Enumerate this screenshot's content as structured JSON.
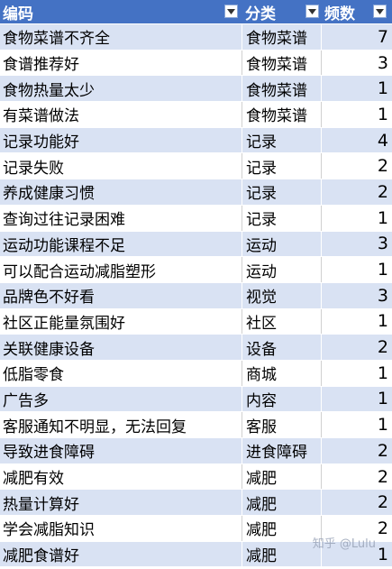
{
  "headers": [
    "编码",
    "分类",
    "频数"
  ],
  "rows": [
    {
      "code": "食物菜谱不齐全",
      "category": "食物菜谱",
      "count": "7"
    },
    {
      "code": "食谱推荐好",
      "category": "食物菜谱",
      "count": "3"
    },
    {
      "code": "食物热量太少",
      "category": "食物菜谱",
      "count": "1"
    },
    {
      "code": "有菜谱做法",
      "category": "食物菜谱",
      "count": "1"
    },
    {
      "code": "记录功能好",
      "category": "记录",
      "count": "4"
    },
    {
      "code": "记录失败",
      "category": "记录",
      "count": "2"
    },
    {
      "code": "养成健康习惯",
      "category": "记录",
      "count": "2"
    },
    {
      "code": "查询过往记录困难",
      "category": "记录",
      "count": "1"
    },
    {
      "code": "运动功能课程不足",
      "category": "运动",
      "count": "3"
    },
    {
      "code": "可以配合运动减脂塑形",
      "category": "运动",
      "count": "1"
    },
    {
      "code": "品牌色不好看",
      "category": "视觉",
      "count": "3"
    },
    {
      "code": "社区正能量氛围好",
      "category": "社区",
      "count": "1"
    },
    {
      "code": "关联健康设备",
      "category": "设备",
      "count": "2"
    },
    {
      "code": "低脂零食",
      "category": "商城",
      "count": "1"
    },
    {
      "code": "广告多",
      "category": "内容",
      "count": "1"
    },
    {
      "code": "客服通知不明显，无法回复",
      "category": "客服",
      "count": "1"
    },
    {
      "code": "导致进食障碍",
      "category": "进食障碍",
      "count": "2"
    },
    {
      "code": "减肥有效",
      "category": "减肥",
      "count": "2"
    },
    {
      "code": "热量计算好",
      "category": "减肥",
      "count": "2"
    },
    {
      "code": "学会减脂知识",
      "category": "减肥",
      "count": "2"
    },
    {
      "code": "减肥食谱好",
      "category": "减肥",
      "count": "1"
    }
  ],
  "watermark": "知乎 @Lulu",
  "icons": {
    "filter": "dropdown-arrow-icon"
  },
  "colors": {
    "header": "#4472c4",
    "band": "#d9e2f3"
  }
}
